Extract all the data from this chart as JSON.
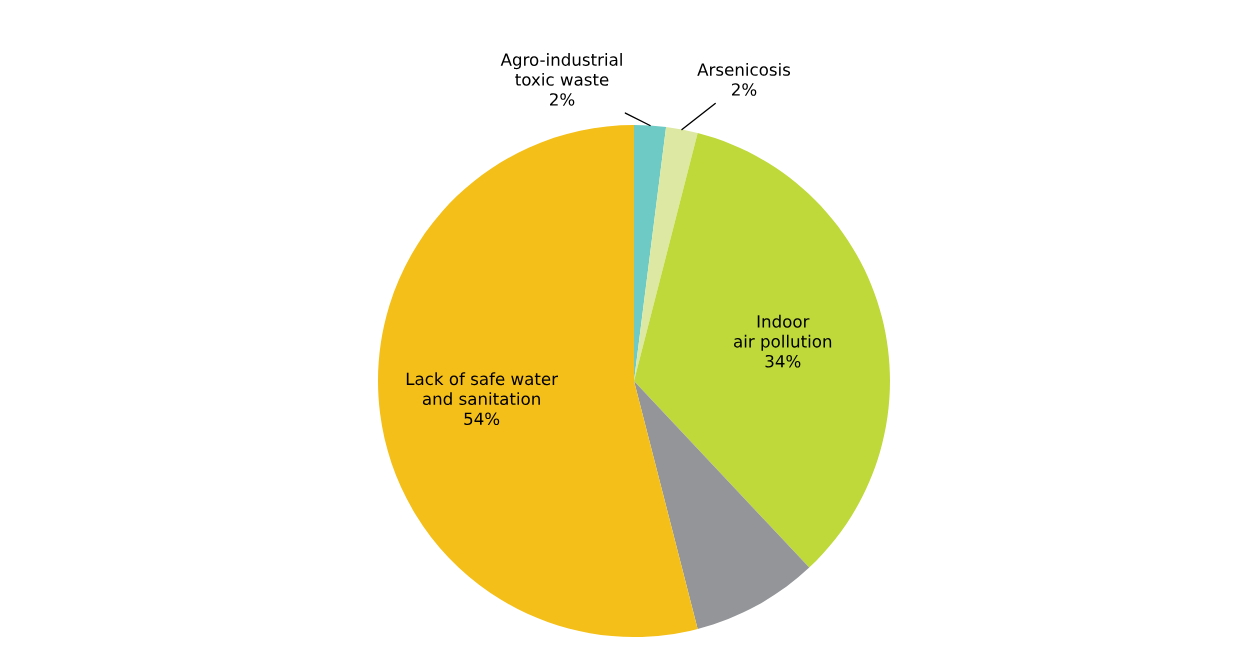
{
  "chart_data": {
    "type": "pie",
    "categories": [
      "Agro-industrial\ntoxic waste",
      "Arsenicosis",
      "Indoor\nair pollution",
      null,
      "Lack of safe water\nand sanitation"
    ],
    "values": [
      2,
      2,
      34,
      8,
      54
    ],
    "value_labels": [
      "2%",
      "2%",
      "34%",
      null,
      "54%"
    ],
    "colors": [
      "#6ecac4",
      "#dde9a2",
      "#bfd83a",
      "#939598",
      "#f4bf19"
    ]
  }
}
